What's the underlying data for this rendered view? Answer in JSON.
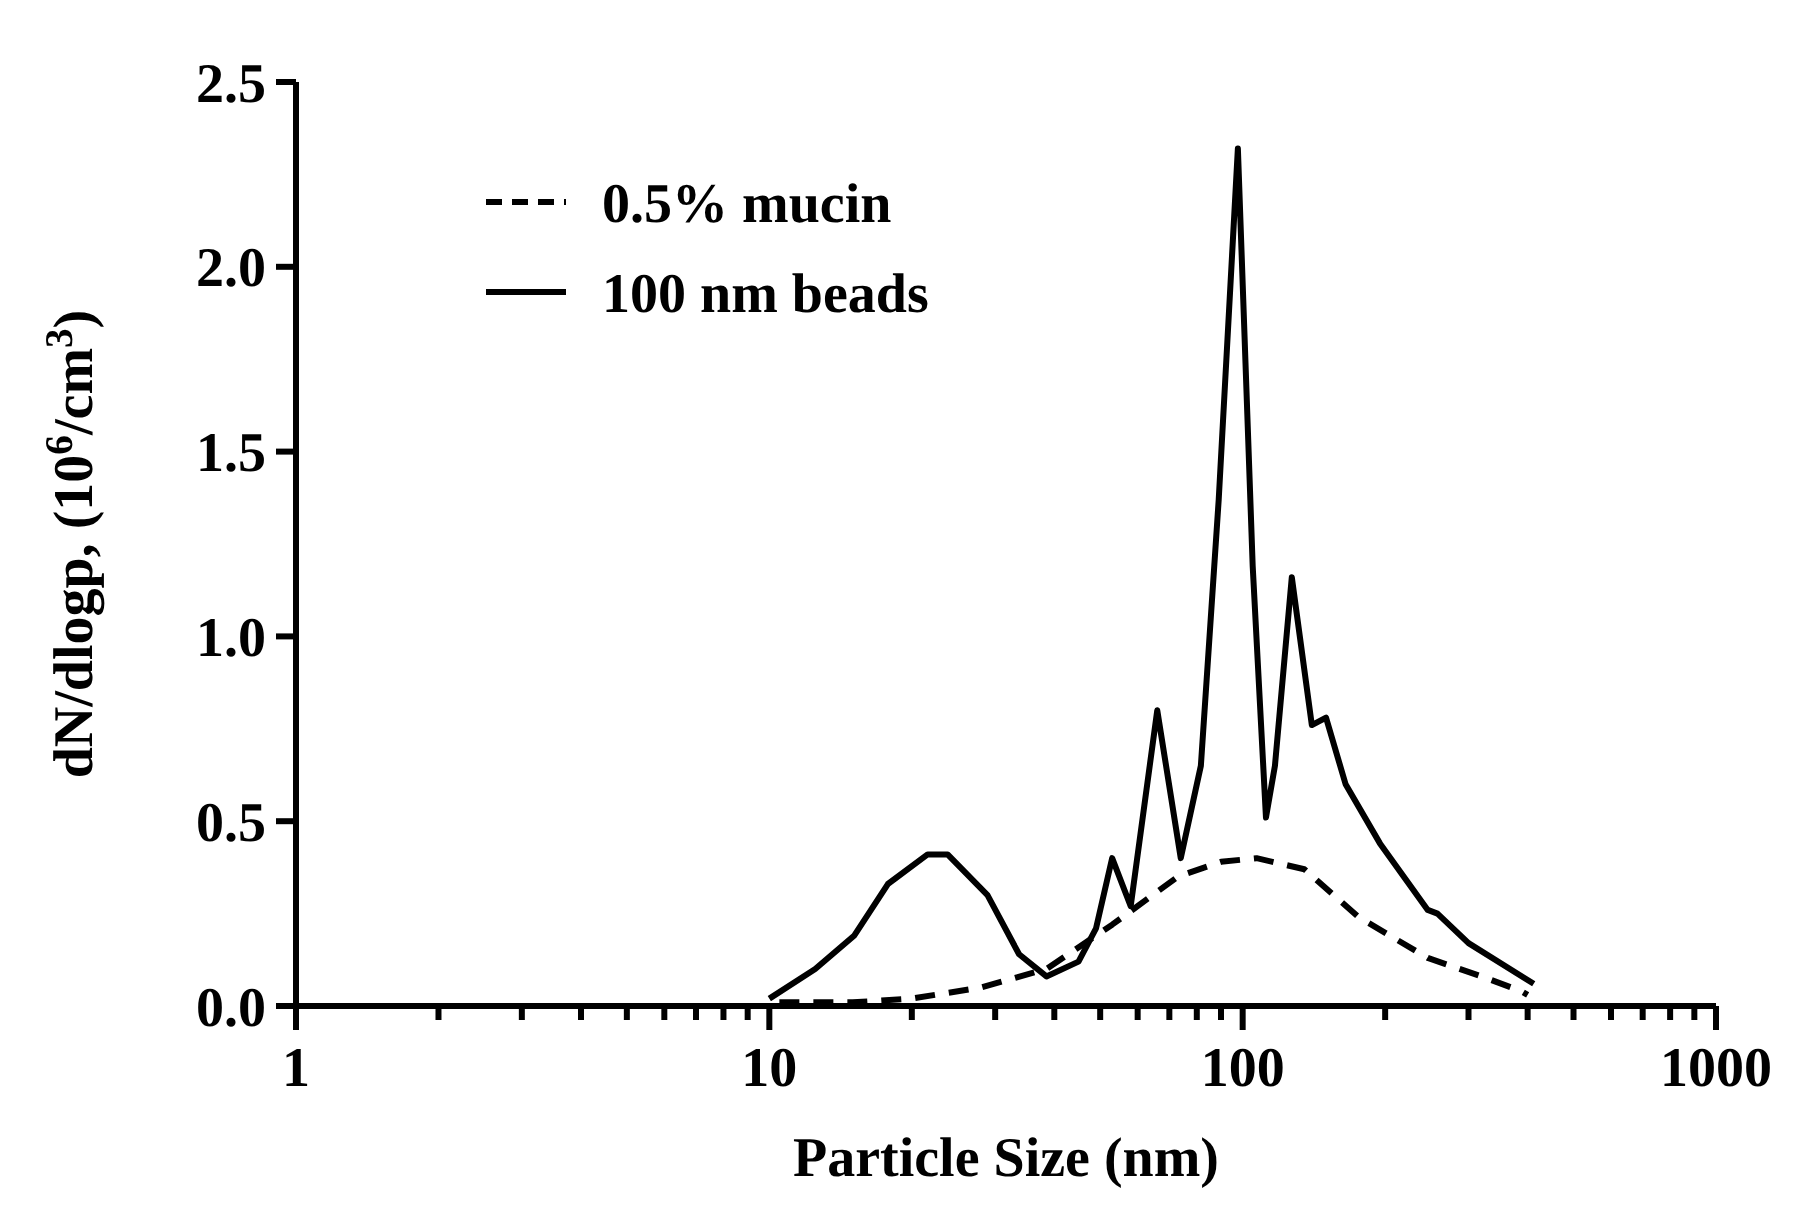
{
  "chart_data": {
    "type": "line",
    "xlabel": "Particle Size (nm)",
    "ylabel": "dN/dlogp, (10$^{6}$/cm$^{3}$)",
    "log": "x",
    "xlim": [
      1,
      1000
    ],
    "ylim": [
      0,
      2.5
    ],
    "xticks": [
      1,
      {
        "value": 2,
        "label": null
      },
      {
        "value": 3,
        "label": null
      },
      {
        "value": 4,
        "label": null
      },
      {
        "value": 5,
        "label": null
      },
      {
        "value": 6,
        "label": null
      },
      {
        "value": 7,
        "label": null
      },
      {
        "value": 8,
        "label": null
      },
      {
        "value": 9,
        "label": null
      },
      10,
      {
        "value": 20,
        "label": null
      },
      {
        "value": 30,
        "label": null
      },
      {
        "value": 40,
        "label": null
      },
      {
        "value": 50,
        "label": null
      },
      {
        "value": 60,
        "label": null
      },
      {
        "value": 70,
        "label": null
      },
      {
        "value": 80,
        "label": null
      },
      {
        "value": 90,
        "label": null
      },
      100,
      {
        "value": 200,
        "label": null
      },
      {
        "value": 300,
        "label": null
      },
      {
        "value": 400,
        "label": null
      },
      {
        "value": 500,
        "label": null
      },
      {
        "value": 600,
        "label": null
      },
      {
        "value": 700,
        "label": null
      },
      {
        "value": 800,
        "label": null
      },
      {
        "value": 900,
        "label": null
      },
      1000
    ],
    "yticks": [
      {
        "value": 0,
        "label": "0.0"
      },
      {
        "value": 0.5,
        "label": "0.5"
      },
      {
        "value": 1,
        "label": "1.0"
      },
      {
        "value": 1.5,
        "label": "1.5"
      },
      {
        "value": 2,
        "label": "2.0"
      },
      {
        "value": 2.5,
        "label": "2.5"
      }
    ],
    "grid": false,
    "legend": "top left",
    "marker": "none",
    "series": [
      {
        "name": "0.5% mucin",
        "color": "#000000",
        "line_style": "dashed",
        "x": [
          10.5,
          15,
          20,
          28,
          38.5,
          53,
          73,
          90,
          107,
          135,
          176,
          246,
          320,
          388,
          400
        ],
        "values": [
          0.01,
          0.01,
          0.02,
          0.05,
          0.1,
          0.22,
          0.35,
          0.39,
          0.4,
          0.37,
          0.24,
          0.13,
          0.08,
          0.04,
          0.03
        ]
      },
      {
        "name": "100 nm beads",
        "color": "#000000",
        "line_style": "solid",
        "x": [
          10,
          12.5,
          15.1,
          17.8,
          21.6,
          23.8,
          28.9,
          33.7,
          38.5,
          45,
          49,
          53,
          58,
          66,
          74,
          81.6,
          89,
          97.7,
          105,
          112,
          117,
          127,
          140,
          150,
          165,
          195,
          246,
          258,
          300,
          412
        ],
        "values": [
          0.02,
          0.1,
          0.19,
          0.33,
          0.41,
          0.41,
          0.3,
          0.14,
          0.08,
          0.12,
          0.21,
          0.4,
          0.27,
          0.8,
          0.4,
          0.65,
          1.37,
          2.32,
          1.19,
          0.51,
          0.65,
          1.16,
          0.76,
          0.78,
          0.6,
          0.44,
          0.26,
          0.25,
          0.17,
          0.06
        ]
      }
    ]
  }
}
